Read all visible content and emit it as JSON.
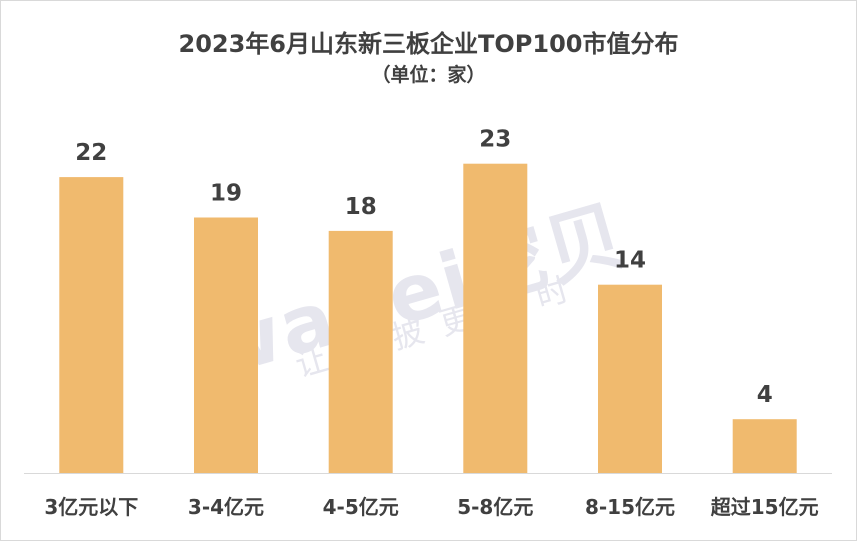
{
  "chart_data": {
    "type": "bar",
    "title": "2023年6月山东新三板企业TOP100市值分布",
    "subtitle": "（单位：家）",
    "categories": [
      "3亿元以下",
      "3-4亿元",
      "4-5亿元",
      "5-8亿元",
      "8-15亿元",
      "超过15亿元"
    ],
    "values": [
      22,
      19,
      18,
      23,
      14,
      4
    ],
    "ylim": [
      0,
      25
    ],
    "grid": false,
    "bar_color": "#F0BA6E",
    "label_color": "#404040"
  },
  "watermark": {
    "logo": "wabei挖贝",
    "tagline": "让信披更及时"
  }
}
